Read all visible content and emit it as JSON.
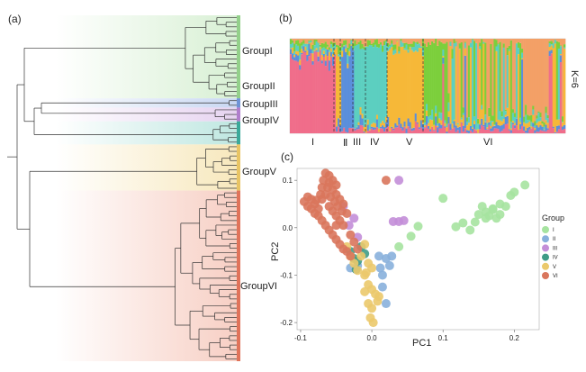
{
  "panels": {
    "a": "(a)",
    "b": "(b)",
    "c": "(c)"
  },
  "tree": {
    "groups": [
      {
        "name": "GroupI",
        "color": "#93d08a",
        "fade": "#d8f0d4",
        "leaves": 18
      },
      {
        "name": "GroupII",
        "color": "#6f93d6",
        "fade": "#c9d8f3",
        "leaves": 2
      },
      {
        "name": "GroupIII",
        "color": "#b07dcc",
        "fade": "#e6d3f0",
        "leaves": 3
      },
      {
        "name": "GroupIV",
        "color": "#3aa99a",
        "fade": "#bfe7e1",
        "leaves": 5
      },
      {
        "name": "GroupV",
        "color": "#e8c464",
        "fade": "#f7e8bd",
        "leaves": 10
      },
      {
        "name": "GroupVI",
        "color": "#e0735a",
        "fade": "#f7cfc4",
        "leaves": 37
      }
    ]
  },
  "structure": {
    "k_label": "K=6",
    "group_labels": [
      "I",
      "Ⅱ",
      "III",
      "IV",
      "V",
      "VI"
    ],
    "palette": [
      "#f06d8a",
      "#5b8fdb",
      "#f6b838",
      "#5ccfc0",
      "#7ccf3c",
      "#f3a067"
    ]
  },
  "chart_data": {
    "type": "scatter",
    "title": "",
    "xlabel": "PC1",
    "ylabel": "PC2",
    "xlim": [
      -0.105,
      0.235
    ],
    "ylim": [
      -0.215,
      0.125
    ],
    "xticks": [
      {
        "value": -0.1,
        "label": "-0.1"
      },
      {
        "value": 0.0,
        "label": "0.0"
      },
      {
        "value": 0.1,
        "label": "0.1"
      },
      {
        "value": 0.2,
        "label": "0.2"
      }
    ],
    "yticks": [
      {
        "value": 0.1,
        "label": "0.1"
      },
      {
        "value": 0.0,
        "label": "0.0"
      },
      {
        "value": -0.1,
        "label": "-0.1"
      },
      {
        "value": -0.2,
        "label": "-0.2"
      }
    ],
    "legend_title": "Group",
    "legend_position": "right",
    "series": [
      {
        "name": "I",
        "color": "#a6e3a0",
        "points": [
          [
            0.038,
            -0.04
          ],
          [
            0.055,
            -0.018
          ],
          [
            0.065,
            0.003
          ],
          [
            0.1,
            0.062
          ],
          [
            0.118,
            0.002
          ],
          [
            0.128,
            0.01
          ],
          [
            0.138,
            -0.005
          ],
          [
            0.145,
            0.012
          ],
          [
            0.15,
            0.028
          ],
          [
            0.155,
            0.045
          ],
          [
            0.16,
            0.033
          ],
          [
            0.165,
            0.025
          ],
          [
            0.17,
            0.038
          ],
          [
            0.175,
            0.02
          ],
          [
            0.18,
            0.05
          ],
          [
            0.188,
            0.045
          ],
          [
            0.195,
            0.068
          ],
          [
            0.2,
            0.075
          ],
          [
            0.215,
            0.09
          ],
          [
            0.18,
            0.028
          ],
          [
            0.16,
            0.02
          ],
          [
            0.17,
            0.04
          ]
        ]
      },
      {
        "name": "II",
        "color": "#88b0dc",
        "points": [
          [
            0.01,
            -0.06
          ],
          [
            0.02,
            -0.065
          ],
          [
            0.025,
            -0.08
          ],
          [
            0.028,
            -0.06
          ],
          [
            0.012,
            -0.085
          ],
          [
            0.015,
            -0.1
          ],
          [
            0.015,
            -0.125
          ],
          [
            0.02,
            -0.16
          ],
          [
            -0.02,
            -0.08
          ],
          [
            -0.03,
            -0.085
          ]
        ]
      },
      {
        "name": "III",
        "color": "#c38ed8",
        "points": [
          [
            -0.04,
            0.045
          ],
          [
            -0.025,
            0.02
          ],
          [
            0.03,
            0.013
          ],
          [
            0.038,
            0.013
          ],
          [
            0.045,
            0.015
          ],
          [
            0.038,
            0.1
          ],
          [
            -0.032,
            0.005
          ],
          [
            -0.02,
            -0.02
          ]
        ]
      },
      {
        "name": "IV",
        "color": "#3f9c87",
        "points": [
          [
            -0.03,
            -0.05
          ],
          [
            -0.025,
            -0.065
          ],
          [
            -0.02,
            -0.07
          ],
          [
            -0.015,
            -0.04
          ],
          [
            -0.01,
            -0.055
          ],
          [
            -0.022,
            -0.088
          ]
        ]
      },
      {
        "name": "V",
        "color": "#ebc96c",
        "points": [
          [
            -0.035,
            -0.04
          ],
          [
            -0.03,
            -0.06
          ],
          [
            -0.025,
            -0.075
          ],
          [
            -0.02,
            -0.09
          ],
          [
            -0.01,
            -0.1
          ],
          [
            -0.005,
            -0.12
          ],
          [
            0.0,
            -0.13
          ],
          [
            0.005,
            -0.14
          ],
          [
            0.008,
            -0.155
          ],
          [
            -0.005,
            -0.16
          ],
          [
            0.0,
            -0.17
          ],
          [
            -0.002,
            -0.19
          ],
          [
            0.002,
            -0.2
          ],
          [
            -0.01,
            -0.135
          ],
          [
            -0.015,
            -0.06
          ],
          [
            -0.01,
            -0.035
          ],
          [
            0.0,
            -0.085
          ],
          [
            -0.005,
            -0.075
          ],
          [
            0.01,
            -0.145
          ],
          [
            -0.008,
            -0.095
          ]
        ]
      },
      {
        "name": "VI",
        "color": "#d9765c",
        "points": [
          [
            -0.095,
            0.055
          ],
          [
            -0.09,
            0.065
          ],
          [
            -0.085,
            0.06
          ],
          [
            -0.08,
            0.05
          ],
          [
            -0.075,
            0.04
          ],
          [
            -0.07,
            0.06
          ],
          [
            -0.065,
            0.07
          ],
          [
            -0.06,
            0.045
          ],
          [
            -0.055,
            0.035
          ],
          [
            -0.05,
            0.025
          ],
          [
            -0.045,
            0.015
          ],
          [
            -0.04,
            0.005
          ],
          [
            -0.085,
            0.04
          ],
          [
            -0.08,
            0.03
          ],
          [
            -0.075,
            0.025
          ],
          [
            -0.07,
            0.015
          ],
          [
            -0.065,
            0.005
          ],
          [
            -0.06,
            -0.005
          ],
          [
            -0.055,
            -0.015
          ],
          [
            -0.05,
            -0.025
          ],
          [
            -0.045,
            -0.035
          ],
          [
            -0.04,
            -0.045
          ],
          [
            -0.035,
            -0.05
          ],
          [
            -0.07,
            0.085
          ],
          [
            -0.068,
            0.1
          ],
          [
            -0.065,
            0.115
          ],
          [
            -0.06,
            0.095
          ],
          [
            -0.055,
            0.08
          ],
          [
            -0.05,
            0.09
          ],
          [
            -0.05,
            0.07
          ],
          [
            -0.045,
            0.06
          ],
          [
            -0.04,
            0.05
          ],
          [
            -0.06,
            0.11
          ],
          [
            -0.055,
            0.1
          ],
          [
            -0.09,
            0.045
          ],
          [
            -0.058,
            0.065
          ],
          [
            -0.052,
            0.055
          ],
          [
            -0.048,
            0.045
          ],
          [
            -0.042,
            0.035
          ],
          [
            -0.035,
            0.03
          ],
          [
            -0.03,
            -0.015
          ],
          [
            -0.025,
            -0.03
          ],
          [
            -0.02,
            -0.045
          ],
          [
            -0.03,
            -0.06
          ],
          [
            0.02,
            0.1
          ],
          [
            -0.062,
            0.085
          ],
          [
            -0.072,
            0.07
          ],
          [
            -0.078,
            0.058
          ],
          [
            -0.05,
            0.005
          ]
        ]
      }
    ]
  }
}
